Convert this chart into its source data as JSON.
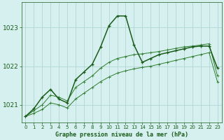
{
  "title": "Graphe pression niveau de la mer (hPa)",
  "bg_color": "#d6f0f0",
  "grid_color": "#aacfcf",
  "line_color_dark": "#1a5c1a",
  "line_color_mid": "#2e7d2e",
  "line_color_light": "#3a9a3a",
  "xlim": [
    -0.5,
    23.5
  ],
  "ylim": [
    1020.55,
    1023.65
  ],
  "yticks": [
    1021,
    1022,
    1023
  ],
  "xticks": [
    0,
    1,
    2,
    3,
    4,
    5,
    6,
    7,
    8,
    9,
    10,
    11,
    12,
    13,
    14,
    15,
    16,
    17,
    18,
    19,
    20,
    21,
    22,
    23
  ],
  "series_main_x": [
    0,
    1,
    2,
    3,
    4,
    5,
    6,
    7,
    8,
    9,
    10,
    11,
    12,
    13,
    14,
    15,
    16,
    17,
    18,
    19,
    20,
    21,
    22,
    23
  ],
  "series_main_y": [
    1020.7,
    1020.9,
    1021.2,
    1021.4,
    1021.15,
    1021.05,
    1021.65,
    1021.85,
    1022.05,
    1022.5,
    1023.05,
    1023.3,
    1023.3,
    1022.55,
    1022.1,
    1022.2,
    1022.3,
    1022.35,
    1022.4,
    1022.45,
    1022.5,
    1022.52,
    1022.52,
    1021.95
  ],
  "series_hi_x": [
    0,
    1,
    2,
    3,
    4,
    5,
    6,
    7,
    8,
    9,
    10,
    11,
    12,
    13,
    14,
    15,
    16,
    17,
    18,
    19,
    20,
    21,
    22,
    23
  ],
  "series_hi_y": [
    1020.7,
    1020.85,
    1021.0,
    1021.25,
    1021.2,
    1021.1,
    1021.45,
    1021.6,
    1021.75,
    1021.95,
    1022.1,
    1022.2,
    1022.25,
    1022.3,
    1022.32,
    1022.35,
    1022.38,
    1022.42,
    1022.46,
    1022.5,
    1022.52,
    1022.55,
    1022.58,
    1021.75
  ],
  "series_lo_x": [
    0,
    1,
    2,
    3,
    4,
    5,
    6,
    7,
    8,
    9,
    10,
    11,
    12,
    13,
    14,
    15,
    16,
    17,
    18,
    19,
    20,
    21,
    22,
    23
  ],
  "series_lo_y": [
    1020.7,
    1020.78,
    1020.88,
    1021.05,
    1021.0,
    1020.92,
    1021.15,
    1021.3,
    1021.45,
    1021.6,
    1021.72,
    1021.82,
    1021.88,
    1021.93,
    1021.97,
    1022.0,
    1022.05,
    1022.1,
    1022.15,
    1022.2,
    1022.25,
    1022.3,
    1022.35,
    1021.6
  ]
}
